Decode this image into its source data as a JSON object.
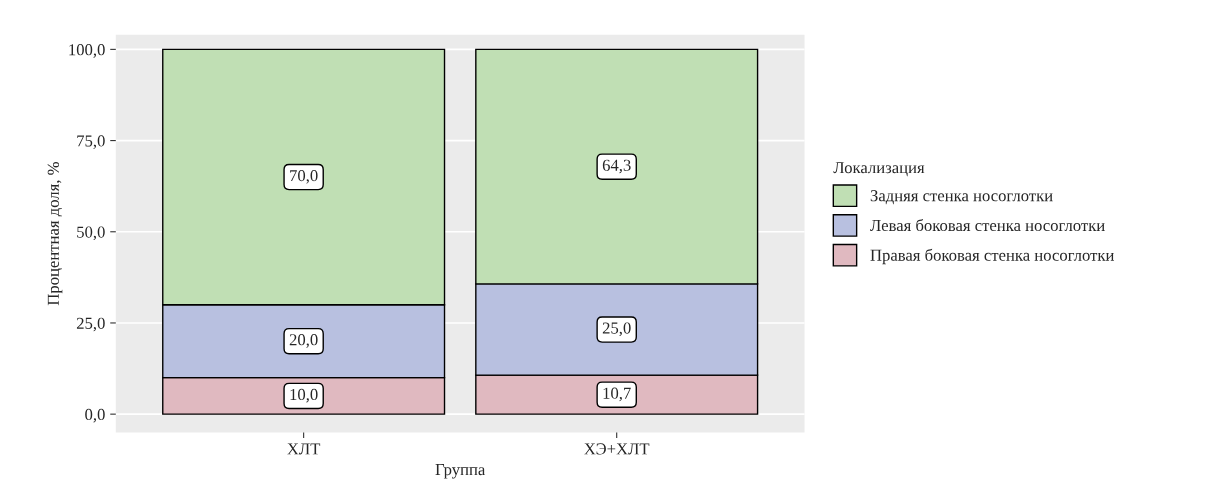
{
  "chart_data": {
    "type": "bar",
    "stacked": true,
    "xlabel": "Группа",
    "ylabel": "Процентная доля, %",
    "legend_title": "Локализация",
    "categories": [
      "ХЛТ",
      "ХЭ+ХЛТ"
    ],
    "series": [
      {
        "name": "Правая боковая стенка носоглотки",
        "color": "#e0b9c0",
        "values": [
          10.0,
          10.7
        ],
        "value_labels": [
          "10,0",
          "10,7"
        ]
      },
      {
        "name": "Левая боковая стенка носоглотки",
        "color": "#b8c0e0",
        "values": [
          20.0,
          25.0
        ],
        "value_labels": [
          "20,0",
          "25,0"
        ]
      },
      {
        "name": "Задняя стенка носоглотки",
        "color": "#c0dfb4",
        "values": [
          70.0,
          64.3
        ],
        "value_labels": [
          "70,0",
          "64,3"
        ]
      }
    ],
    "ylim": [
      -5,
      104
    ],
    "yticks": [
      {
        "value": 0,
        "label": "0,0"
      },
      {
        "value": 25,
        "label": "25,0"
      },
      {
        "value": 50,
        "label": "50,0"
      },
      {
        "value": 75,
        "label": "75,0"
      },
      {
        "value": 100,
        "label": "100,0"
      }
    ],
    "grid": "y",
    "legend": "right"
  }
}
